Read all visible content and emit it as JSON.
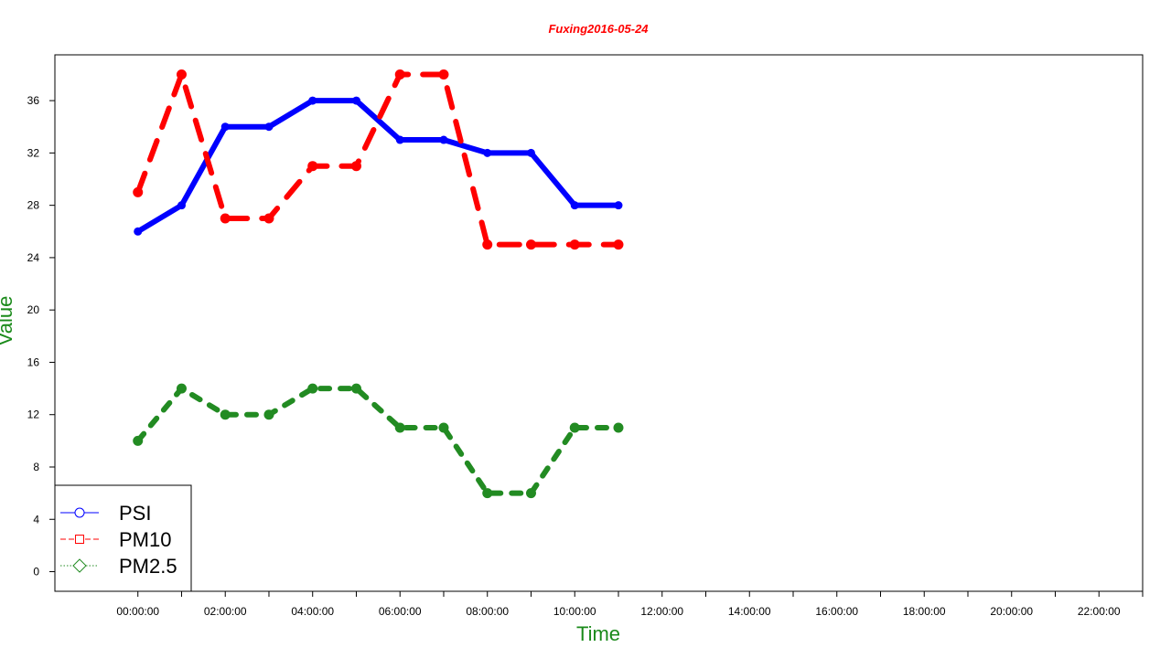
{
  "chart_data": {
    "type": "line",
    "title": "Fuxing2016-05-24",
    "xlabel": "Time",
    "ylabel": "Value",
    "colors": {
      "title": "#ff0000",
      "axis_title": "#1a8a1a"
    },
    "x": [
      "00:00:00",
      "01:00:00",
      "02:00:00",
      "03:00:00",
      "04:00:00",
      "05:00:00",
      "06:00:00",
      "07:00:00",
      "08:00:00",
      "09:00:00",
      "10:00:00",
      "11:00:00"
    ],
    "x_tick_labels": [
      "00:00:00",
      "02:00:00",
      "04:00:00",
      "06:00:00",
      "08:00:00",
      "10:00:00",
      "12:00:00",
      "14:00:00",
      "16:00:00",
      "18:00:00",
      "20:00:00",
      "22:00:00"
    ],
    "y_ticks": [
      0,
      4,
      8,
      12,
      16,
      20,
      24,
      28,
      32,
      36
    ],
    "ylim": [
      -1.5,
      39.5
    ],
    "xlim_hours": [
      -1.9,
      23.0
    ],
    "grid": false,
    "legend_position": "bottom-left",
    "series": [
      {
        "name": "PSI",
        "color": "#0000ff",
        "dash": "solid",
        "marker": "circle",
        "values": [
          26,
          28,
          34,
          34,
          36,
          36,
          33,
          33,
          32,
          32,
          28,
          28
        ]
      },
      {
        "name": "PM10",
        "color": "#ff0000",
        "dash": "dashed",
        "marker": "square",
        "values": [
          29,
          38,
          27,
          27,
          31,
          31,
          38,
          38,
          25,
          25,
          25,
          25
        ]
      },
      {
        "name": "PM2.5",
        "color": "#228b22",
        "dash": "dotted",
        "marker": "diamond",
        "values": [
          10,
          14,
          12,
          12,
          14,
          14,
          11,
          11,
          6,
          6,
          11,
          11
        ]
      }
    ]
  }
}
